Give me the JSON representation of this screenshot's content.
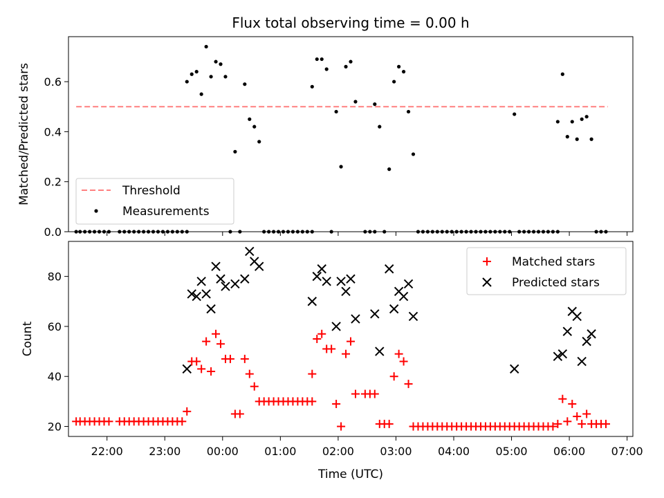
{
  "chart_data": [
    {
      "type": "scatter",
      "title": "Flux total observing time = 0.00 h",
      "xlabel": "",
      "ylabel": "Matched/Predicted stars",
      "xlim": [
        "21:20",
        "07:06"
      ],
      "ylim": [
        0,
        0.78
      ],
      "yticks": [
        0.0,
        0.2,
        0.4,
        0.6
      ],
      "ytick_labels": [
        "0.0",
        "0.2",
        "0.4",
        "0.6"
      ],
      "legend_position": "lower-left",
      "threshold": {
        "name": "Threshold",
        "value": 0.5,
        "x_range": [
          "21:28",
          "06:40"
        ],
        "color": "#ff7f7f",
        "style": "dashed"
      },
      "series": [
        {
          "name": "Measurements",
          "color": "#000000",
          "marker": "dot",
          "points": [
            [
              "21:28",
              0
            ],
            [
              "21:32",
              0
            ],
            [
              "21:37",
              0
            ],
            [
              "21:42",
              0
            ],
            [
              "21:47",
              0
            ],
            [
              "21:52",
              0
            ],
            [
              "21:57",
              0
            ],
            [
              "22:02",
              0
            ],
            [
              "22:13",
              0
            ],
            [
              "22:18",
              0
            ],
            [
              "22:23",
              0
            ],
            [
              "22:28",
              0
            ],
            [
              "22:33",
              0
            ],
            [
              "22:38",
              0
            ],
            [
              "22:43",
              0
            ],
            [
              "22:48",
              0
            ],
            [
              "22:53",
              0
            ],
            [
              "22:58",
              0
            ],
            [
              "23:03",
              0
            ],
            [
              "23:08",
              0
            ],
            [
              "23:13",
              0
            ],
            [
              "23:18",
              0
            ],
            [
              "23:23",
              0
            ],
            [
              "23:23",
              0.6
            ],
            [
              "23:28",
              0.63
            ],
            [
              "23:33",
              0.64
            ],
            [
              "23:38",
              0.55
            ],
            [
              "23:43",
              0.74
            ],
            [
              "23:48",
              0.62
            ],
            [
              "23:53",
              0.68
            ],
            [
              "23:58",
              0.67
            ],
            [
              "00:03",
              0.62
            ],
            [
              "00:08",
              0
            ],
            [
              "00:13",
              0.32
            ],
            [
              "00:18",
              0
            ],
            [
              "00:23",
              0.59
            ],
            [
              "00:28",
              0.45
            ],
            [
              "00:33",
              0.42
            ],
            [
              "00:38",
              0.36
            ],
            [
              "00:43",
              0
            ],
            [
              "00:48",
              0
            ],
            [
              "00:53",
              0
            ],
            [
              "00:58",
              0
            ],
            [
              "01:03",
              0
            ],
            [
              "01:08",
              0
            ],
            [
              "01:13",
              0
            ],
            [
              "01:18",
              0
            ],
            [
              "01:23",
              0
            ],
            [
              "01:28",
              0
            ],
            [
              "01:33",
              0
            ],
            [
              "01:33",
              0.58
            ],
            [
              "01:38",
              0.69
            ],
            [
              "01:43",
              0.69
            ],
            [
              "01:48",
              0.65
            ],
            [
              "01:53",
              0
            ],
            [
              "01:58",
              0.48
            ],
            [
              "02:03",
              0.26
            ],
            [
              "02:08",
              0.66
            ],
            [
              "02:13",
              0.68
            ],
            [
              "02:18",
              0.52
            ],
            [
              "02:28",
              0
            ],
            [
              "02:33",
              0
            ],
            [
              "02:38",
              0
            ],
            [
              "02:38",
              0.51
            ],
            [
              "02:43",
              0.42
            ],
            [
              "02:48",
              0
            ],
            [
              "02:53",
              0.25
            ],
            [
              "02:58",
              0.6
            ],
            [
              "03:03",
              0.66
            ],
            [
              "03:08",
              0.64
            ],
            [
              "03:13",
              0.48
            ],
            [
              "03:18",
              0.31
            ],
            [
              "03:23",
              0
            ],
            [
              "03:28",
              0
            ],
            [
              "03:33",
              0
            ],
            [
              "03:38",
              0
            ],
            [
              "03:43",
              0
            ],
            [
              "03:48",
              0
            ],
            [
              "03:53",
              0
            ],
            [
              "03:58",
              0
            ],
            [
              "04:03",
              0
            ],
            [
              "04:08",
              0
            ],
            [
              "04:13",
              0
            ],
            [
              "04:18",
              0
            ],
            [
              "04:23",
              0
            ],
            [
              "04:28",
              0
            ],
            [
              "04:33",
              0
            ],
            [
              "04:38",
              0
            ],
            [
              "04:43",
              0
            ],
            [
              "04:48",
              0
            ],
            [
              "04:53",
              0
            ],
            [
              "04:58",
              0
            ],
            [
              "05:03",
              0.47
            ],
            [
              "05:08",
              0
            ],
            [
              "05:13",
              0
            ],
            [
              "05:18",
              0
            ],
            [
              "05:23",
              0
            ],
            [
              "05:28",
              0
            ],
            [
              "05:33",
              0
            ],
            [
              "05:38",
              0
            ],
            [
              "05:43",
              0
            ],
            [
              "05:48",
              0
            ],
            [
              "05:48",
              0.44
            ],
            [
              "05:53",
              0.63
            ],
            [
              "05:58",
              0.38
            ],
            [
              "06:03",
              0.44
            ],
            [
              "06:08",
              0.37
            ],
            [
              "06:13",
              0.45
            ],
            [
              "06:18",
              0.46
            ],
            [
              "06:23",
              0.37
            ],
            [
              "06:28",
              0
            ],
            [
              "06:33",
              0
            ],
            [
              "06:38",
              0
            ]
          ]
        }
      ]
    },
    {
      "type": "scatter",
      "title": "",
      "xlabel": "Time (UTC)",
      "ylabel": "Count",
      "xlim": [
        "21:20",
        "07:06"
      ],
      "ylim": [
        16,
        94
      ],
      "yticks": [
        20,
        40,
        60,
        80
      ],
      "ytick_labels": [
        "20",
        "40",
        "60",
        "80"
      ],
      "xticks": [
        "22:00",
        "23:00",
        "00:00",
        "01:00",
        "02:00",
        "03:00",
        "04:00",
        "05:00",
        "06:00",
        "07:00"
      ],
      "legend_position": "top-right",
      "series": [
        {
          "name": "Matched stars",
          "color": "#ff0000",
          "marker": "plus",
          "points": [
            [
              "21:28",
              22
            ],
            [
              "21:32",
              22
            ],
            [
              "21:37",
              22
            ],
            [
              "21:42",
              22
            ],
            [
              "21:47",
              22
            ],
            [
              "21:52",
              22
            ],
            [
              "21:57",
              22
            ],
            [
              "22:02",
              22
            ],
            [
              "22:13",
              22
            ],
            [
              "22:18",
              22
            ],
            [
              "22:23",
              22
            ],
            [
              "22:28",
              22
            ],
            [
              "22:33",
              22
            ],
            [
              "22:38",
              22
            ],
            [
              "22:43",
              22
            ],
            [
              "22:48",
              22
            ],
            [
              "22:53",
              22
            ],
            [
              "22:58",
              22
            ],
            [
              "23:03",
              22
            ],
            [
              "23:08",
              22
            ],
            [
              "23:13",
              22
            ],
            [
              "23:18",
              22
            ],
            [
              "23:23",
              26
            ],
            [
              "23:28",
              46
            ],
            [
              "23:33",
              46
            ],
            [
              "23:38",
              43
            ],
            [
              "23:43",
              54
            ],
            [
              "23:48",
              42
            ],
            [
              "23:53",
              57
            ],
            [
              "23:58",
              53
            ],
            [
              "00:03",
              47
            ],
            [
              "00:08",
              47
            ],
            [
              "00:13",
              25
            ],
            [
              "00:18",
              25
            ],
            [
              "00:23",
              47
            ],
            [
              "00:28",
              41
            ],
            [
              "00:33",
              36
            ],
            [
              "00:38",
              30
            ],
            [
              "00:43",
              30
            ],
            [
              "00:48",
              30
            ],
            [
              "00:53",
              30
            ],
            [
              "00:58",
              30
            ],
            [
              "01:03",
              30
            ],
            [
              "01:08",
              30
            ],
            [
              "01:13",
              30
            ],
            [
              "01:18",
              30
            ],
            [
              "01:23",
              30
            ],
            [
              "01:28",
              30
            ],
            [
              "01:33",
              30
            ],
            [
              "01:33",
              41
            ],
            [
              "01:38",
              55
            ],
            [
              "01:43",
              57
            ],
            [
              "01:48",
              51
            ],
            [
              "01:53",
              51
            ],
            [
              "01:58",
              29
            ],
            [
              "02:03",
              20
            ],
            [
              "02:08",
              49
            ],
            [
              "02:13",
              54
            ],
            [
              "02:18",
              33
            ],
            [
              "02:28",
              33
            ],
            [
              "02:33",
              33
            ],
            [
              "02:38",
              33
            ],
            [
              "02:43",
              21
            ],
            [
              "02:48",
              21
            ],
            [
              "02:53",
              21
            ],
            [
              "02:58",
              40
            ],
            [
              "03:03",
              49
            ],
            [
              "03:08",
              46
            ],
            [
              "03:13",
              37
            ],
            [
              "03:18",
              20
            ],
            [
              "03:23",
              20
            ],
            [
              "03:28",
              20
            ],
            [
              "03:33",
              20
            ],
            [
              "03:38",
              20
            ],
            [
              "03:43",
              20
            ],
            [
              "03:48",
              20
            ],
            [
              "03:53",
              20
            ],
            [
              "03:58",
              20
            ],
            [
              "04:03",
              20
            ],
            [
              "04:08",
              20
            ],
            [
              "04:13",
              20
            ],
            [
              "04:18",
              20
            ],
            [
              "04:23",
              20
            ],
            [
              "04:28",
              20
            ],
            [
              "04:33",
              20
            ],
            [
              "04:38",
              20
            ],
            [
              "04:43",
              20
            ],
            [
              "04:48",
              20
            ],
            [
              "04:53",
              20
            ],
            [
              "04:58",
              20
            ],
            [
              "05:03",
              20
            ],
            [
              "05:08",
              20
            ],
            [
              "05:13",
              20
            ],
            [
              "05:18",
              20
            ],
            [
              "05:23",
              20
            ],
            [
              "05:28",
              20
            ],
            [
              "05:33",
              20
            ],
            [
              "05:38",
              20
            ],
            [
              "05:43",
              20
            ],
            [
              "05:48",
              21
            ],
            [
              "05:53",
              31
            ],
            [
              "05:58",
              22
            ],
            [
              "06:03",
              29
            ],
            [
              "06:08",
              24
            ],
            [
              "06:13",
              21
            ],
            [
              "06:18",
              25
            ],
            [
              "06:23",
              21
            ],
            [
              "06:28",
              21
            ],
            [
              "06:33",
              21
            ],
            [
              "06:38",
              21
            ]
          ]
        },
        {
          "name": "Predicted stars",
          "color": "#000000",
          "marker": "x",
          "points": [
            [
              "23:23",
              43
            ],
            [
              "23:28",
              73
            ],
            [
              "23:33",
              72
            ],
            [
              "23:38",
              78
            ],
            [
              "23:43",
              73
            ],
            [
              "23:48",
              67
            ],
            [
              "23:53",
              84
            ],
            [
              "23:58",
              79
            ],
            [
              "00:03",
              76
            ],
            [
              "00:13",
              77
            ],
            [
              "00:23",
              79
            ],
            [
              "00:28",
              90
            ],
            [
              "00:33",
              86
            ],
            [
              "00:38",
              84
            ],
            [
              "01:33",
              70
            ],
            [
              "01:38",
              80
            ],
            [
              "01:43",
              83
            ],
            [
              "01:48",
              78
            ],
            [
              "01:58",
              60
            ],
            [
              "02:03",
              78
            ],
            [
              "02:08",
              74
            ],
            [
              "02:13",
              79
            ],
            [
              "02:18",
              63
            ],
            [
              "02:38",
              65
            ],
            [
              "02:43",
              50
            ],
            [
              "02:53",
              83
            ],
            [
              "02:58",
              67
            ],
            [
              "03:03",
              74
            ],
            [
              "03:08",
              72
            ],
            [
              "03:13",
              77
            ],
            [
              "03:18",
              64
            ],
            [
              "05:03",
              43
            ],
            [
              "05:48",
              48
            ],
            [
              "05:53",
              49
            ],
            [
              "05:58",
              58
            ],
            [
              "06:03",
              66
            ],
            [
              "06:08",
              64
            ],
            [
              "06:13",
              46
            ],
            [
              "06:18",
              54
            ],
            [
              "06:23",
              57
            ]
          ]
        }
      ]
    }
  ]
}
